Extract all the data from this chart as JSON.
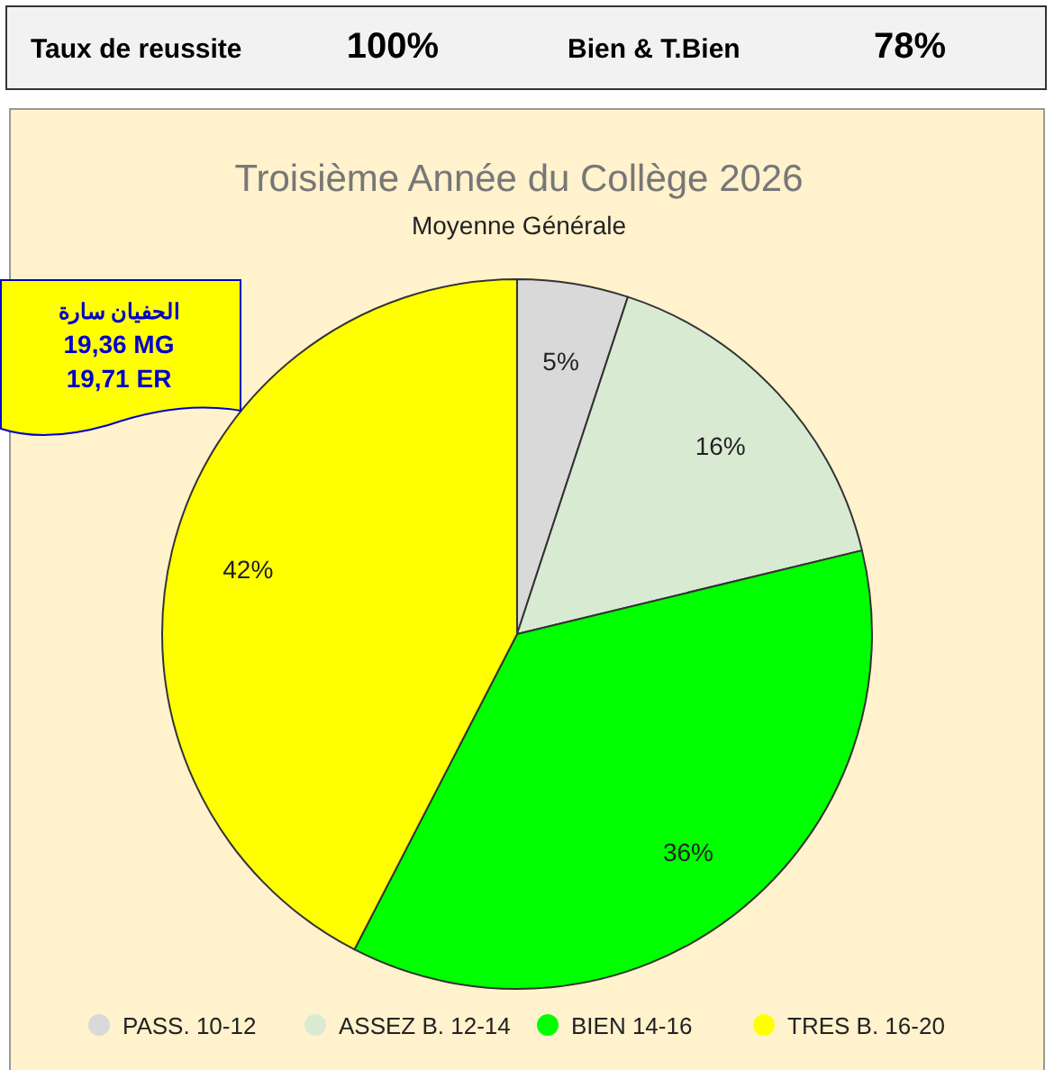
{
  "chart_data": [
    {
      "type": "other",
      "annotations": [
        "Taux de reussite",
        "100%",
        "Bien & T.Bien",
        "78%"
      ]
    },
    {
      "type": "pie",
      "title": "Troisième Année du Collège 2026",
      "subtitle": "Moyenne Générale",
      "categories": [
        "PASS. 10-12",
        "ASSEZ B. 12-14",
        "BIEN  14-16",
        "TRES B. 16-20"
      ],
      "values": [
        5,
        16,
        36,
        42
      ],
      "colors": [
        "#d9d9d9",
        "#d9ead3",
        "#00ff00",
        "#ffff00"
      ],
      "value_labels": [
        "5%",
        "16%",
        "36%",
        "42%"
      ],
      "legend": "bottom",
      "annotations": [
        "الحفيان سارة",
        "19,36 MG",
        "19,71 ER"
      ]
    }
  ]
}
